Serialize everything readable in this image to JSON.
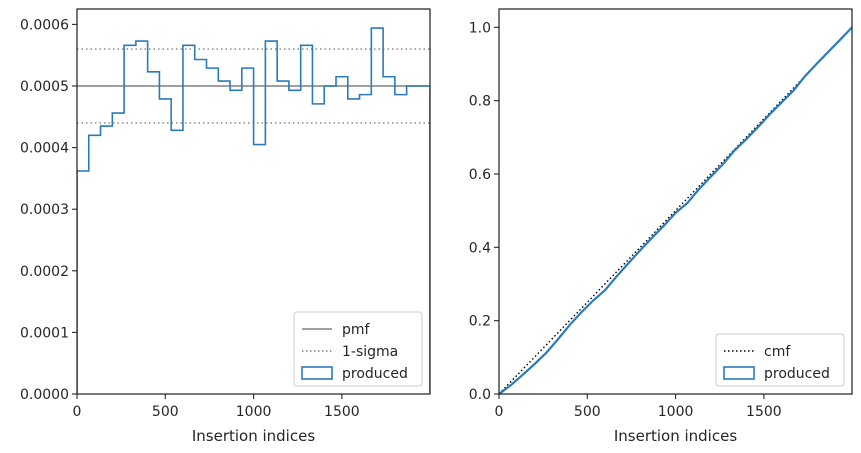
{
  "colors": {
    "produced": "#2b7bb9",
    "pmf": "#808080",
    "sigma": "#808080",
    "cmf": "#000000",
    "axes": "#262626"
  },
  "chart_data": [
    {
      "type": "line",
      "xlabel": "Insertion indices",
      "ylabel": "",
      "xlim": [
        0,
        1999
      ],
      "ylim": [
        0,
        0.000625
      ],
      "xticks": [
        0,
        500,
        1000,
        1500
      ],
      "xtick_labels": [
        "0",
        "500",
        "1000",
        "1500"
      ],
      "yticks": [
        0,
        0.0001,
        0.0002,
        0.0003,
        0.0004,
        0.0005,
        0.0006
      ],
      "ytick_labels": [
        "0.0000",
        "0.0001",
        "0.0002",
        "0.0003",
        "0.0004",
        "0.0005",
        "0.0006"
      ],
      "legend_position": "lower-right",
      "lines": [
        {
          "name": "pmf",
          "style": "solid",
          "y": 0.0005
        },
        {
          "name": "1-sigma",
          "style": "dotted",
          "y": [
            0.00044,
            0.00056
          ]
        }
      ],
      "series": [
        {
          "name": "produced",
          "style": "step-histogram",
          "bin_width": 66.67,
          "values": [
            0.000362,
            0.00042,
            0.000435,
            0.000456,
            0.000566,
            0.000573,
            0.000523,
            0.000479,
            0.000428,
            0.000566,
            0.000543,
            0.000529,
            0.000508,
            0.000493,
            0.000529,
            0.000405,
            0.000573,
            0.000508,
            0.000493,
            0.000566,
            0.000471,
            0.0005,
            0.000515,
            0.000479,
            0.000486,
            0.000594,
            0.000515,
            0.000486,
            0.0005,
            0.0005
          ]
        }
      ]
    },
    {
      "type": "line",
      "xlabel": "Insertion indices",
      "ylabel": "",
      "xlim": [
        0,
        1999
      ],
      "ylim": [
        0,
        1.05
      ],
      "xticks": [
        0,
        500,
        1000,
        1500
      ],
      "xtick_labels": [
        "0",
        "500",
        "1000",
        "1500"
      ],
      "yticks": [
        0,
        0.2,
        0.4,
        0.6,
        0.8,
        1.0
      ],
      "ytick_labels": [
        "0.0",
        "0.2",
        "0.4",
        "0.6",
        "0.8",
        "1.0"
      ],
      "legend_position": "lower-right",
      "series": [
        {
          "name": "cmf",
          "style": "dotted",
          "x": [
            0,
            1999
          ],
          "y": [
            0,
            1.0
          ]
        },
        {
          "name": "produced",
          "style": "step",
          "x": [
            0,
            66.67,
            133.33,
            200,
            266.67,
            333.33,
            400,
            466.67,
            533.33,
            600,
            666.67,
            733.33,
            800,
            866.67,
            933.33,
            1000,
            1066.67,
            1133.33,
            1200,
            1266.67,
            1333.33,
            1400,
            1466.67,
            1533.33,
            1600,
            1666.67,
            1733.33,
            1800,
            1866.67,
            1933.33,
            1999
          ],
          "y": [
            0,
            0.024,
            0.052,
            0.081,
            0.112,
            0.149,
            0.188,
            0.223,
            0.255,
            0.283,
            0.321,
            0.357,
            0.392,
            0.426,
            0.459,
            0.494,
            0.521,
            0.559,
            0.593,
            0.626,
            0.664,
            0.695,
            0.728,
            0.763,
            0.795,
            0.827,
            0.867,
            0.901,
            0.934,
            0.967,
            1.0
          ]
        }
      ]
    }
  ]
}
